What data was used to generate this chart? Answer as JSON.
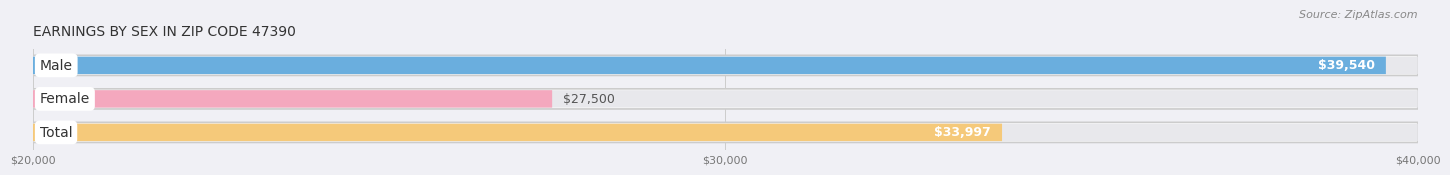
{
  "title": "EARNINGS BY SEX IN ZIP CODE 47390",
  "source": "Source: ZipAtlas.com",
  "categories": [
    "Male",
    "Female",
    "Total"
  ],
  "values": [
    39540,
    27500,
    33997
  ],
  "bar_colors": [
    "#6aaede",
    "#f4a8be",
    "#f5c97a"
  ],
  "bar_bg_color": "#e8e8ec",
  "bar_outer_color": "#d8d8de",
  "xmin": 20000,
  "xmax": 40000,
  "xticks": [
    20000,
    30000,
    40000
  ],
  "xtick_labels": [
    "$20,000",
    "$30,000",
    "$40,000"
  ],
  "value_labels": [
    "$39,540",
    "$27,500",
    "$33,997"
  ],
  "value_inside": [
    true,
    false,
    true
  ],
  "title_fontsize": 10,
  "source_fontsize": 8,
  "tick_fontsize": 8,
  "bar_label_fontsize": 9,
  "category_label_fontsize": 10,
  "bar_height": 0.52,
  "background_color": "#f0f0f5",
  "bar_gap": 1.0
}
